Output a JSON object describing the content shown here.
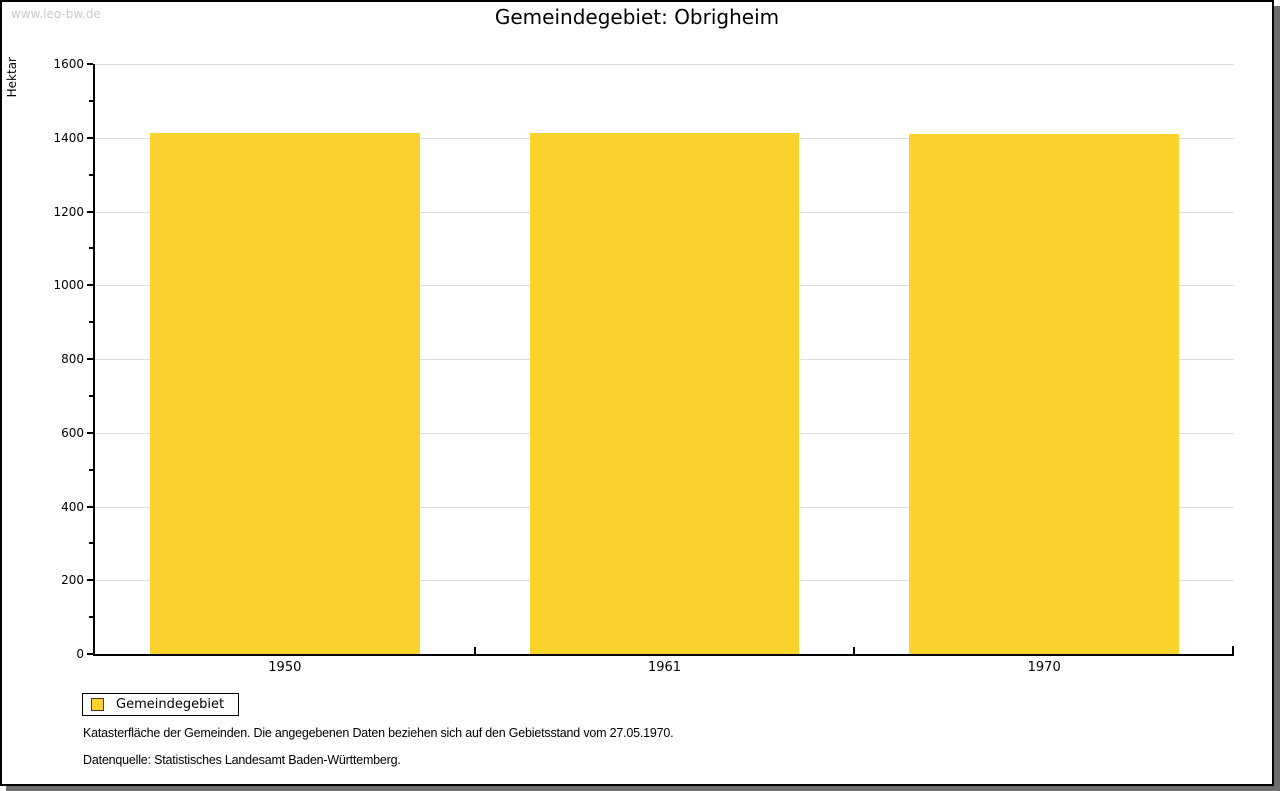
{
  "watermark": "www.leo-bw.de",
  "title": "Gemeindegebiet: Obrigheim",
  "y_axis": {
    "label": "Hektar"
  },
  "legend": {
    "label": "Gemeindegebiet"
  },
  "footnotes": {
    "line1": "Katasterfläche der Gemeinden. Die angegebenen Daten beziehen sich auf den Gebietsstand vom 27.05.1970.",
    "line2": "Datenquelle: Statistisches Landesamt Baden-Württemberg."
  },
  "colors": {
    "bar": "#fcd32c",
    "grid": "#dfdfdf",
    "axis": "#000000",
    "watermark": "#c9c9c9",
    "shadow": "#6e6e6e",
    "legend_swatch_border": "#3a3a3a"
  },
  "chart_data": {
    "type": "bar",
    "title": "Gemeindegebiet: Obrigheim",
    "categories": [
      "1950",
      "1961",
      "1970"
    ],
    "series": [
      {
        "name": "Gemeindegebiet",
        "values": [
          1414,
          1414,
          1409
        ]
      }
    ],
    "xlabel": "",
    "ylabel": "Hektar",
    "ylim": [
      0,
      1600
    ],
    "y_major_step": 200,
    "y_minor_step": 100,
    "grid": "horizontal major gridlines",
    "legend_position": "bottom-left",
    "bar_color": "#fcd32c"
  }
}
